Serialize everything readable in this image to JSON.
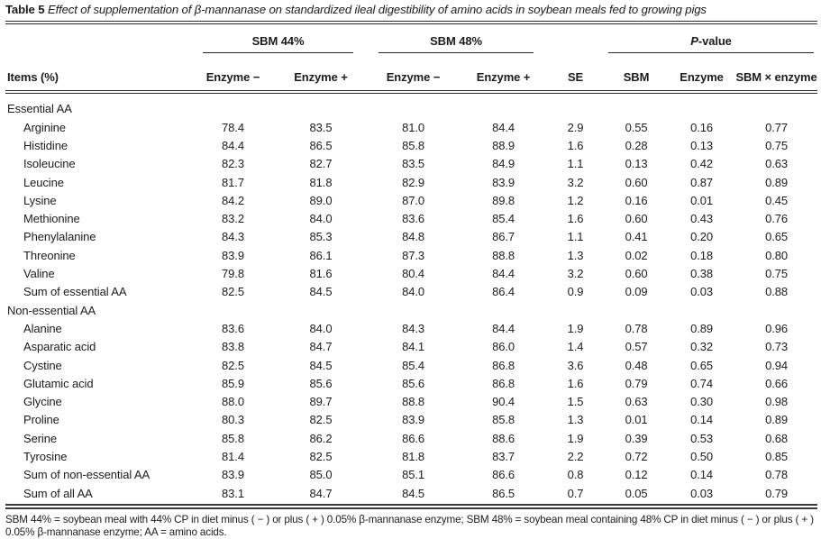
{
  "caption": {
    "label": "Table 5",
    "text": "Effect of supplementation of β-mannanase on standardized ileal digestibility of amino acids in soybean meals fed to growing pigs"
  },
  "table": {
    "col_groups": [
      {
        "label": "SBM 44%",
        "span": 2
      },
      {
        "label": "SBM 48%",
        "span": 2
      },
      {
        "label": "P-value",
        "span": 3
      }
    ],
    "columns": [
      "Items (%)",
      "Enzyme −",
      "Enzyme +",
      "Enzyme −",
      "Enzyme +",
      "SE",
      "SBM",
      "Enzyme",
      "SBM × enzyme"
    ],
    "sections": [
      {
        "header": "Essential AA",
        "rows": [
          {
            "label": "Arginine",
            "values": [
              "78.4",
              "83.5",
              "81.0",
              "84.4",
              "2.9",
              "0.55",
              "0.16",
              "0.77"
            ]
          },
          {
            "label": "Histidine",
            "values": [
              "84.4",
              "86.5",
              "85.8",
              "88.9",
              "1.6",
              "0.28",
              "0.13",
              "0.75"
            ]
          },
          {
            "label": "Isoleucine",
            "values": [
              "82.3",
              "82.7",
              "83.5",
              "84.9",
              "1.1",
              "0.13",
              "0.42",
              "0.63"
            ]
          },
          {
            "label": "Leucine",
            "values": [
              "81.7",
              "81.8",
              "82.9",
              "83.9",
              "3.2",
              "0.60",
              "0.87",
              "0.89"
            ]
          },
          {
            "label": "Lysine",
            "values": [
              "84.2",
              "89.0",
              "87.0",
              "89.8",
              "1.2",
              "0.16",
              "0.01",
              "0.45"
            ]
          },
          {
            "label": "Methionine",
            "values": [
              "83.2",
              "84.0",
              "83.6",
              "85.4",
              "1.6",
              "0.60",
              "0.43",
              "0.76"
            ]
          },
          {
            "label": "Phenylalanine",
            "values": [
              "84.3",
              "85.3",
              "84.8",
              "86.7",
              "1.1",
              "0.41",
              "0.20",
              "0.65"
            ]
          },
          {
            "label": "Threonine",
            "values": [
              "83.9",
              "86.1",
              "87.3",
              "88.8",
              "1.3",
              "0.02",
              "0.18",
              "0.80"
            ]
          },
          {
            "label": "Valine",
            "values": [
              "79.8",
              "81.6",
              "80.4",
              "84.4",
              "3.2",
              "0.60",
              "0.38",
              "0.75"
            ]
          },
          {
            "label": "Sum of essential AA",
            "values": [
              "82.5",
              "84.5",
              "84.0",
              "86.4",
              "0.9",
              "0.09",
              "0.03",
              "0.88"
            ]
          }
        ]
      },
      {
        "header": "Non-essential AA",
        "rows": [
          {
            "label": "Alanine",
            "values": [
              "83.6",
              "84.0",
              "84.3",
              "84.4",
              "1.9",
              "0.78",
              "0.89",
              "0.96"
            ]
          },
          {
            "label": "Asparatic acid",
            "values": [
              "83.8",
              "84.7",
              "84.1",
              "86.0",
              "1.4",
              "0.57",
              "0.32",
              "0.73"
            ]
          },
          {
            "label": "Cystine",
            "values": [
              "82.5",
              "84.5",
              "85.4",
              "86.8",
              "3.6",
              "0.48",
              "0.65",
              "0.94"
            ]
          },
          {
            "label": "Glutamic acid",
            "values": [
              "85.9",
              "85.6",
              "85.6",
              "86.8",
              "1.6",
              "0.79",
              "0.74",
              "0.66"
            ]
          },
          {
            "label": "Glycine",
            "values": [
              "88.0",
              "89.7",
              "88.8",
              "90.4",
              "1.5",
              "0.63",
              "0.30",
              "0.98"
            ]
          },
          {
            "label": "Proline",
            "values": [
              "80.3",
              "82.5",
              "83.9",
              "85.8",
              "1.3",
              "0.01",
              "0.14",
              "0.89"
            ]
          },
          {
            "label": "Serine",
            "values": [
              "85.8",
              "86.2",
              "86.6",
              "88.6",
              "1.9",
              "0.39",
              "0.53",
              "0.68"
            ]
          },
          {
            "label": "Tyrosine",
            "values": [
              "81.4",
              "82.5",
              "81.8",
              "83.7",
              "2.2",
              "0.72",
              "0.50",
              "0.85"
            ]
          },
          {
            "label": "Sum of non-essential AA",
            "values": [
              "83.9",
              "85.0",
              "85.1",
              "86.6",
              "0.8",
              "0.12",
              "0.14",
              "0.78"
            ]
          },
          {
            "label": "Sum of all AA",
            "values": [
              "83.1",
              "84.7",
              "84.5",
              "86.5",
              "0.7",
              "0.05",
              "0.03",
              "0.79"
            ]
          }
        ]
      }
    ]
  },
  "footnote": "SBM 44% = soybean meal with 44% CP in diet minus ( − ) or plus ( + ) 0.05% β-mannanase enzyme; SBM 48% = soybean meal containing 48% CP in diet minus ( − ) or plus ( + ) 0.05% β-mannanase enzyme; AA = amino acids."
}
